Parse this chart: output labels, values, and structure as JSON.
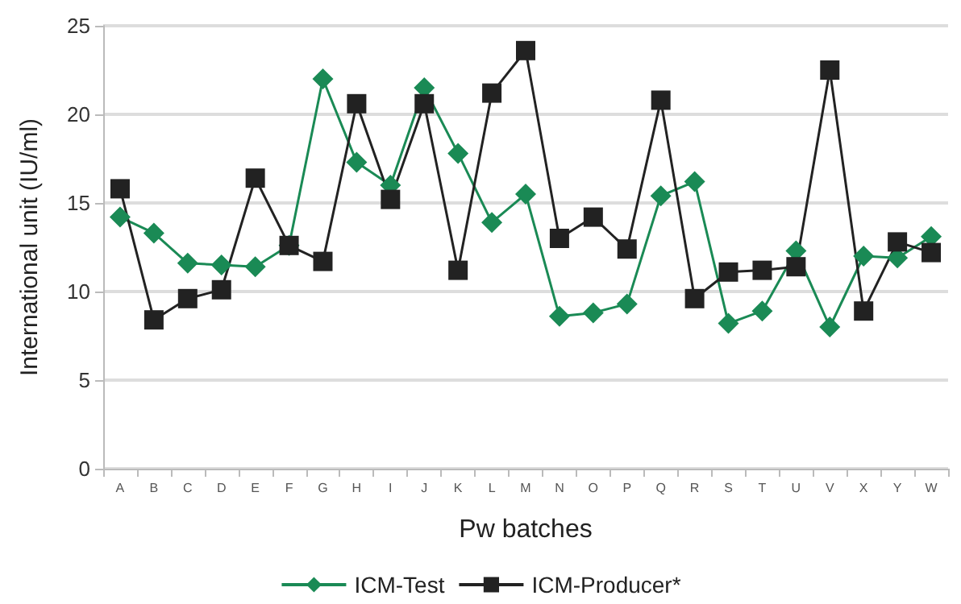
{
  "chart_data": {
    "type": "line",
    "xlabel": "Pw batches",
    "ylabel": "International unit (IU/ml)",
    "categories": [
      "A",
      "B",
      "C",
      "D",
      "E",
      "F",
      "G",
      "H",
      "I",
      "J",
      "K",
      "L",
      "M",
      "N",
      "O",
      "P",
      "Q",
      "R",
      "S",
      "T",
      "U",
      "V",
      "X",
      "Y",
      "W"
    ],
    "series": [
      {
        "name": "ICM-Test",
        "color": "#1a8a55",
        "marker": "diamond",
        "values": [
          14.2,
          13.3,
          11.6,
          11.5,
          11.4,
          12.6,
          22,
          17.3,
          16,
          21.5,
          17.8,
          13.9,
          15.5,
          8.6,
          8.8,
          9.3,
          15.4,
          16.2,
          8.2,
          8.9,
          12.3,
          8,
          12,
          11.9,
          13.1
        ]
      },
      {
        "name": "ICM-Producer*",
        "color": "#222222",
        "marker": "square",
        "values": [
          15.8,
          8.4,
          9.6,
          10.1,
          16.4,
          12.6,
          11.7,
          20.6,
          15.2,
          20.6,
          11.2,
          21.2,
          23.6,
          13,
          14.2,
          12.4,
          20.8,
          9.6,
          11.1,
          11.2,
          11.4,
          22.5,
          8.9,
          12.8,
          12.2
        ]
      }
    ],
    "ylim": [
      0,
      25
    ],
    "yticks": [
      0,
      5,
      10,
      15,
      20,
      25
    ],
    "grid": "y",
    "legend": "bottom"
  }
}
